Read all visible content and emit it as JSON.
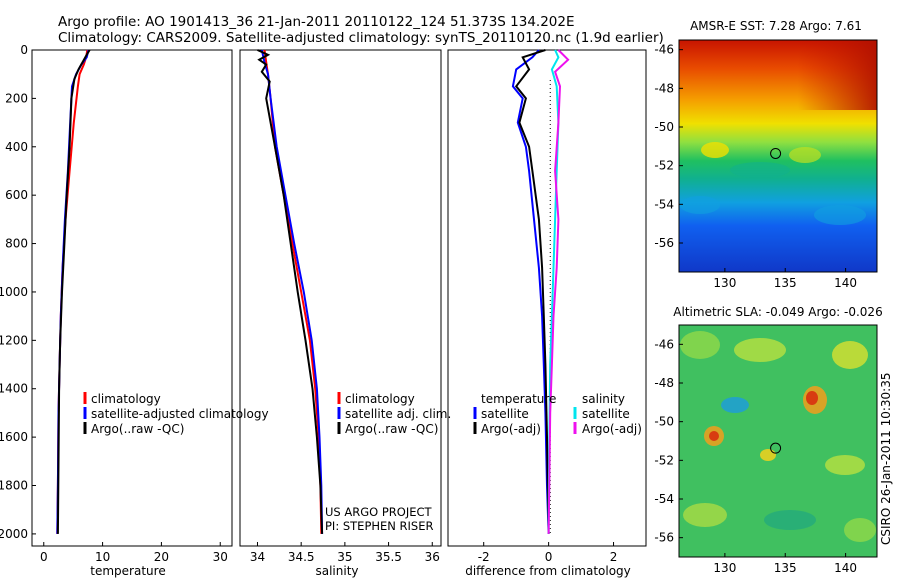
{
  "header": {
    "line1": "Argo profile: AO 1901413_36 21-Jan-2011 20110122_124 51.373S 134.202E",
    "line2": "Climatology: CARS2009. Satellite-adjusted climatology: synTS_20110120.nc (1.9d earlier)"
  },
  "side_label": "CSIRO 26-Jan-2011 10:30:35",
  "colors": {
    "climatology": "#ff0000",
    "satellite": "#0000ff",
    "argo": "#000000",
    "sal_sat": "#00e5ee",
    "sal_argo": "#ee11ee"
  },
  "chart_data": [
    {
      "id": "temperature",
      "type": "line",
      "xlabel": "temperature",
      "xlim": [
        -2,
        32
      ],
      "ylim": [
        2050,
        0
      ],
      "xticks": [
        "0",
        "10",
        "20",
        "30"
      ],
      "yticks": [
        "0",
        "200",
        "400",
        "600",
        "800",
        "1000",
        "1200",
        "1400",
        "1600",
        "1800",
        "2000"
      ],
      "legend": [
        "climatology",
        "satellite-adjusted climatology",
        "Argo(..raw -QC)"
      ],
      "series": [
        {
          "name": "climatology",
          "color": "#ff0000",
          "x": [
            7.4,
            7.2,
            6.8,
            6.1,
            5.8,
            5.1,
            4.4,
            3.7,
            3.2,
            2.9,
            2.7,
            2.5,
            2.4,
            2.3
          ],
          "y": [
            0,
            30,
            60,
            100,
            150,
            300,
            500,
            700,
            900,
            1100,
            1300,
            1500,
            1800,
            2000
          ]
        },
        {
          "name": "satellite-adjusted climatology",
          "color": "#0000ff",
          "x": [
            7.6,
            7.3,
            6.4,
            5.5,
            4.8,
            4.5,
            4.1,
            3.6,
            3.2,
            2.9,
            2.7,
            2.5,
            2.4,
            2.3
          ],
          "y": [
            0,
            30,
            60,
            100,
            150,
            300,
            500,
            700,
            900,
            1100,
            1300,
            1500,
            1800,
            2000
          ]
        },
        {
          "name": "Argo(..raw -QC)",
          "color": "#000000",
          "x": [
            7.8,
            7.3,
            6.6,
            5.9,
            5.2,
            4.7,
            4.4,
            3.9,
            3.5,
            3.1,
            2.8,
            2.6,
            2.5,
            2.4
          ],
          "y": [
            0,
            20,
            50,
            80,
            120,
            200,
            400,
            600,
            800,
            1000,
            1200,
            1400,
            1700,
            2000
          ]
        }
      ]
    },
    {
      "id": "salinity",
      "type": "line",
      "xlabel": "salinity",
      "xlim": [
        33.8,
        36.1
      ],
      "ylim": [
        2050,
        0
      ],
      "xticks": [
        "34",
        "34.5",
        "35",
        "35.5",
        "36"
      ],
      "yticks": [],
      "legend": [
        "climatology",
        "satellite adj. clim.",
        "Argo(..raw -QC)"
      ],
      "annotation": [
        "US ARGO PROJECT",
        "PI: STEPHEN RISER"
      ],
      "series": [
        {
          "name": "climatology",
          "color": "#ff0000",
          "x": [
            34.08,
            34.1,
            34.12,
            34.15,
            34.2,
            34.3,
            34.4,
            34.5,
            34.6,
            34.66,
            34.7,
            34.72,
            34.73
          ],
          "y": [
            0,
            50,
            100,
            200,
            400,
            600,
            800,
            1000,
            1200,
            1400,
            1600,
            1800,
            2000
          ]
        },
        {
          "name": "satellite adj. clim.",
          "color": "#0000ff",
          "x": [
            34.05,
            34.08,
            34.12,
            34.15,
            34.22,
            34.32,
            34.42,
            34.53,
            34.62,
            34.68,
            34.71,
            34.73,
            34.74
          ],
          "y": [
            0,
            50,
            100,
            200,
            400,
            600,
            800,
            1000,
            1200,
            1400,
            1600,
            1800,
            2000
          ]
        },
        {
          "name": "Argo(..raw -QC)",
          "color": "#000000",
          "x": [
            34.0,
            34.12,
            34.02,
            34.1,
            34.05,
            34.14,
            34.1,
            34.2,
            34.3,
            34.38,
            34.46,
            34.55,
            34.63,
            34.68,
            34.72,
            34.74
          ],
          "y": [
            0,
            20,
            40,
            60,
            90,
            130,
            200,
            400,
            600,
            800,
            1000,
            1200,
            1400,
            1600,
            1800,
            2000
          ]
        }
      ]
    },
    {
      "id": "difference",
      "type": "line",
      "xlabel": "difference from climatology",
      "xlim": [
        -3.1,
        3.0
      ],
      "ylim": [
        2050,
        0
      ],
      "xticks": [
        "-2",
        "0",
        "2"
      ],
      "yticks": [],
      "legend_temperature_title": "temperature",
      "legend_salinity_title": "salinity",
      "legend": [
        "satellite",
        "Argo(-adj)",
        "satellite",
        "Argo(-adj)"
      ],
      "series": [
        {
          "name": "satellite",
          "group": "temperature",
          "color": "#0000ff",
          "x": [
            -0.3,
            -0.5,
            -1.0,
            -1.1,
            -0.8,
            -0.95,
            -0.7,
            -0.6,
            -0.45,
            -0.3,
            -0.2,
            -0.15,
            -0.1,
            -0.05,
            0.0
          ],
          "y": [
            0,
            30,
            80,
            150,
            200,
            300,
            400,
            500,
            700,
            900,
            1100,
            1300,
            1500,
            1800,
            2000
          ]
        },
        {
          "name": "Argo(-adj)",
          "group": "temperature",
          "color": "#000000",
          "x": [
            -0.1,
            -0.8,
            -0.6,
            -1.0,
            -0.7,
            -0.9,
            -0.6,
            -0.5,
            -0.3,
            -0.2,
            -0.15,
            -0.1,
            -0.05,
            0.0
          ],
          "y": [
            0,
            30,
            80,
            150,
            200,
            300,
            400,
            500,
            700,
            900,
            1100,
            1300,
            1600,
            2000
          ]
        },
        {
          "name": "satellite",
          "group": "salinity",
          "color": "#00e5ee",
          "x": [
            0.2,
            0.3,
            0.1,
            0.25,
            0.3,
            0.25,
            0.2,
            0.15,
            0.1,
            0.05,
            0.03,
            0.01,
            0.0
          ],
          "y": [
            0,
            30,
            80,
            150,
            300,
            500,
            700,
            900,
            1100,
            1300,
            1500,
            1800,
            2000
          ]
        },
        {
          "name": "Argo(-adj)",
          "group": "salinity",
          "color": "#ee11ee",
          "x": [
            0.3,
            0.6,
            0.2,
            0.35,
            0.3,
            0.2,
            0.3,
            0.25,
            0.15,
            0.1,
            0.05,
            0.02,
            0.0
          ],
          "y": [
            0,
            40,
            90,
            150,
            300,
            500,
            700,
            900,
            1100,
            1300,
            1500,
            1800,
            2000
          ]
        }
      ]
    },
    {
      "id": "sst_map",
      "type": "heatmap",
      "title": "AMSR-E SST: 7.28 Argo: 7.61",
      "xlim": [
        126.2,
        142.6
      ],
      "ylim": [
        -57.5,
        -45.5
      ],
      "xticks": [
        "130",
        "135",
        "140"
      ],
      "yticks": [
        "-46",
        "-48",
        "-50",
        "-52",
        "-54",
        "-56"
      ],
      "profile_marker": {
        "lon": 134.2,
        "lat": -51.37
      }
    },
    {
      "id": "sla_map",
      "type": "heatmap",
      "title": "Altimetric SLA: -0.049 Argo: -0.026",
      "xlim": [
        126.2,
        142.6
      ],
      "ylim": [
        -57.0,
        -45.0
      ],
      "xticks": [
        "130",
        "135",
        "140"
      ],
      "yticks": [
        "-46",
        "-48",
        "-50",
        "-52",
        "-54",
        "-56"
      ],
      "profile_marker": {
        "lon": 134.2,
        "lat": -51.37
      }
    }
  ]
}
